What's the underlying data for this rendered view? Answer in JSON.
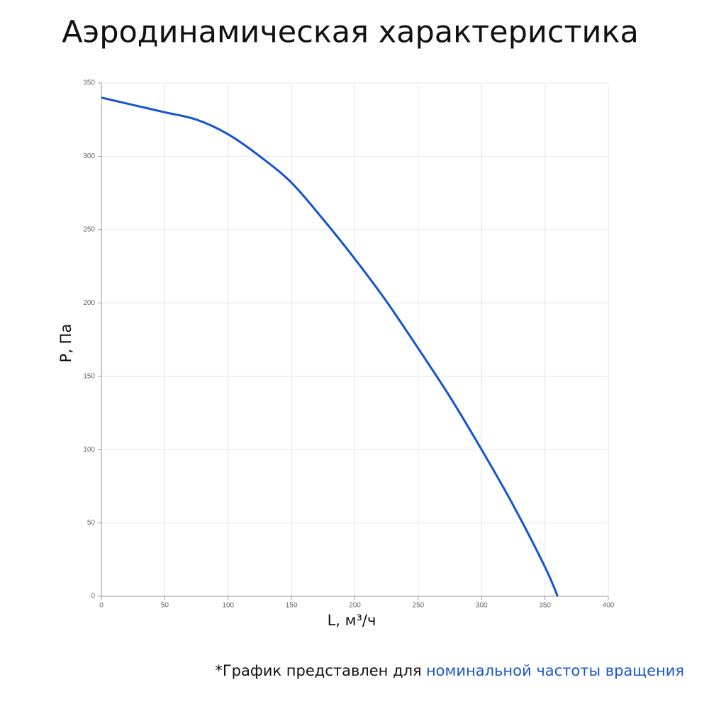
{
  "chart_data": {
    "type": "line",
    "title": "Аэродинамическая характеристика",
    "x_label": "L, м³/ч",
    "y_label": "P, Па",
    "x": [
      0,
      25,
      50,
      75,
      100,
      125,
      150,
      175,
      200,
      225,
      250,
      275,
      300,
      325,
      350,
      360
    ],
    "series": [
      {
        "color": "#1552d4",
        "values": [
          340,
          335,
          330,
          325,
          315,
          300,
          282,
          257,
          230,
          201,
          169,
          136,
          100,
          62,
          20,
          0
        ]
      }
    ],
    "xlim": [
      0,
      400
    ],
    "xticks": [
      0,
      50,
      100,
      150,
      200,
      250,
      300,
      350,
      400
    ],
    "ylim": [
      0,
      350
    ],
    "yticks": [
      0,
      50,
      100,
      150,
      200,
      250,
      300,
      350
    ],
    "grid": true,
    "footnote": "*График представлен для",
    "footnote_highlight": "номинальной частоты вращения"
  }
}
